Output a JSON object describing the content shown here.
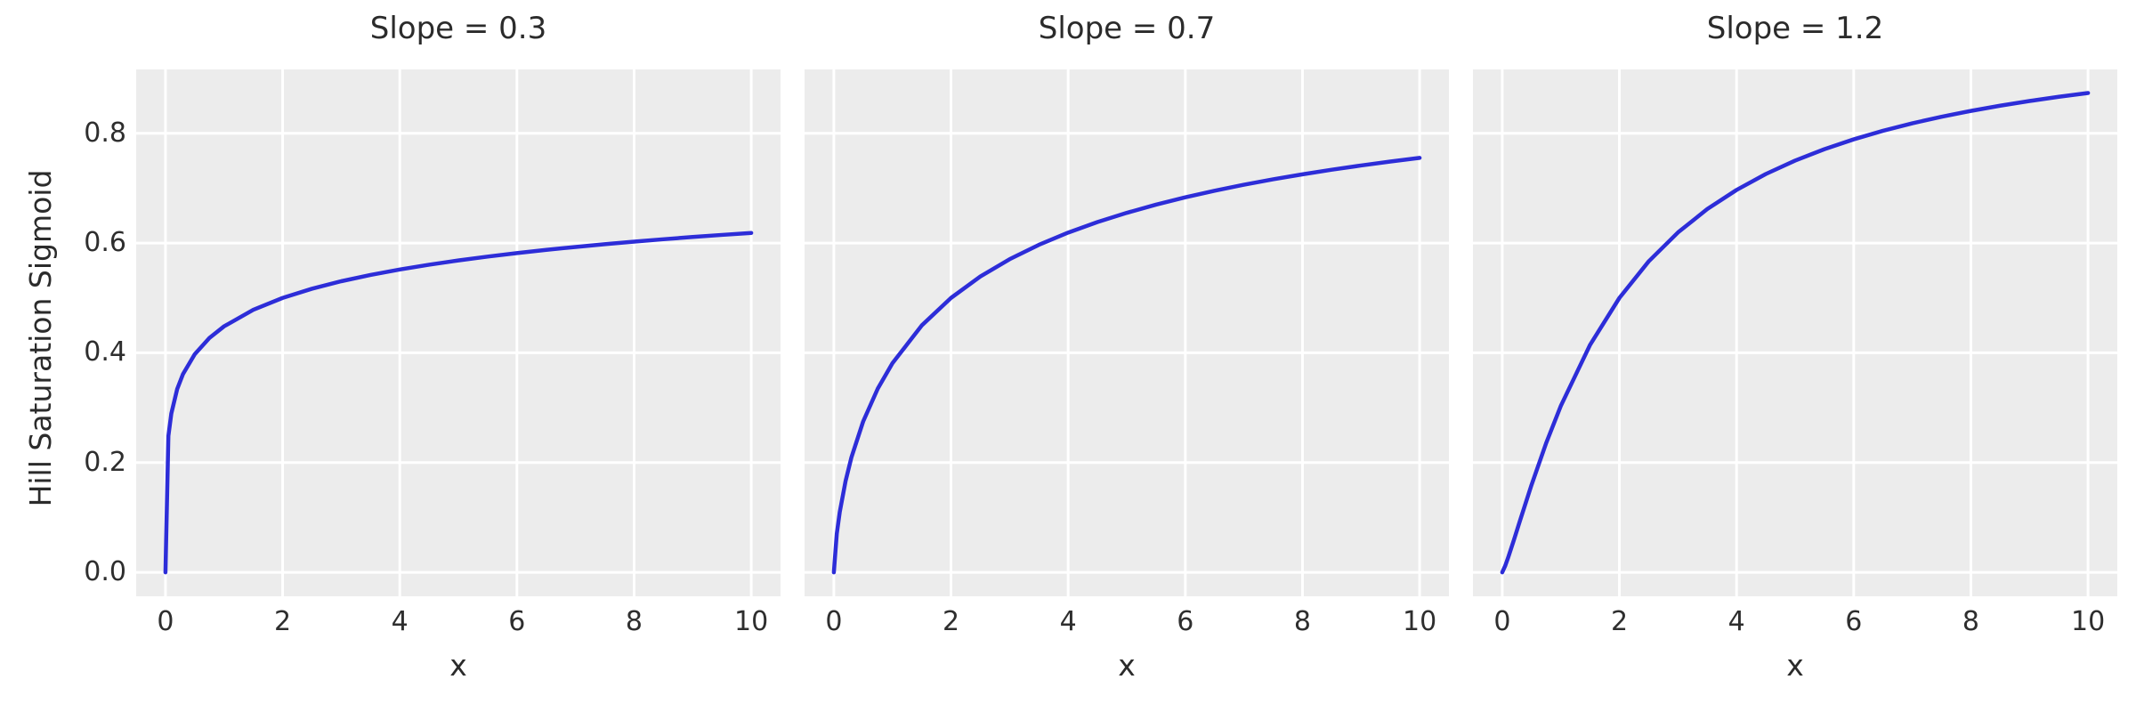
{
  "figure": {
    "ylabel": "Hill Saturation Sigmoid",
    "xlabel": "x",
    "background_color": "#ffffff",
    "panel_background_color": "#ececec",
    "grid_color": "#ffffff",
    "line_color": "#2d2dd8",
    "text_color": "#2b2b2b"
  },
  "axes": {
    "x_tick_labels": [
      "0",
      "2",
      "4",
      "6",
      "8",
      "10"
    ],
    "x_tick_values": [
      0,
      2,
      4,
      6,
      8,
      10
    ],
    "y_tick_labels": [
      "0.0",
      "0.2",
      "0.4",
      "0.6",
      "0.8"
    ],
    "y_tick_values": [
      0.0,
      0.2,
      0.4,
      0.6,
      0.8
    ],
    "xlim": [
      -0.5,
      10.5
    ],
    "ylim": [
      -0.0436,
      0.9163
    ]
  },
  "chart_data": {
    "type": "line",
    "layout": "1 row x 3 columns, shared y-axis, grid on, no legend",
    "function": "Hill saturation sigmoid y = x^s / (x^s + K^s) with half-saturation K = 2",
    "titles": [
      "Slope = 0.3",
      "Slope = 0.7",
      "Slope = 1.2"
    ],
    "xlabel": "x",
    "ylabel": "Hill Saturation Sigmoid",
    "xlim": [
      -0.5,
      10.5
    ],
    "ylim": [
      -0.0436,
      0.9163
    ],
    "grid": true,
    "legend": false,
    "x": [
      0,
      0.05,
      0.1,
      0.2,
      0.3,
      0.5,
      0.75,
      1,
      1.5,
      2,
      2.5,
      3,
      3.5,
      4,
      4.5,
      5,
      5.5,
      6,
      6.5,
      7,
      7.5,
      8,
      8.5,
      9,
      9.5,
      10
    ],
    "series": [
      {
        "name": "Slope = 0.3",
        "slope": 0.3,
        "values": [
          0,
          0.2485,
          0.2893,
          0.3339,
          0.3614,
          0.3975,
          0.427,
          0.4482,
          0.4784,
          0.5,
          0.5167,
          0.5304,
          0.5419,
          0.5518,
          0.5605,
          0.5683,
          0.5753,
          0.5817,
          0.5875,
          0.5929,
          0.5979,
          0.6025,
          0.6069,
          0.611,
          0.6148,
          0.6184
        ]
      },
      {
        "name": "Slope = 0.7",
        "slope": 0.7,
        "values": [
          0,
          0.0703,
          0.1094,
          0.1663,
          0.2095,
          0.2748,
          0.3348,
          0.381,
          0.4498,
          0.5,
          0.539,
          0.5705,
          0.5967,
          0.619,
          0.6382,
          0.655,
          0.67,
          0.6833,
          0.6953,
          0.7062,
          0.7161,
          0.7252,
          0.7336,
          0.7413,
          0.7485,
          0.7552
        ]
      },
      {
        "name": "Slope = 1.2",
        "slope": 1.2,
        "values": [
          0,
          0.0118,
          0.0267,
          0.0593,
          0.0931,
          0.1593,
          0.2356,
          0.3033,
          0.4146,
          0.5,
          0.5666,
          0.6193,
          0.6619,
          0.6967,
          0.7258,
          0.7502,
          0.771,
          0.7889,
          0.8045,
          0.8181,
          0.8301,
          0.8407,
          0.8502,
          0.8587,
          0.8664,
          0.8734
        ]
      }
    ]
  }
}
